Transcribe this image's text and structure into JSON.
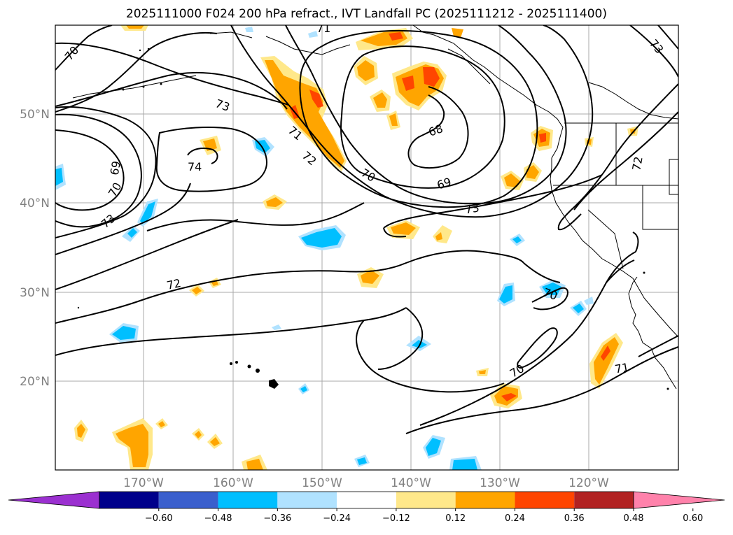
{
  "title": "2025111000 F024 200 hPa refract., IVT Landfall PC (2025111212 - 2025111400)",
  "latitude_labels": [
    "50°N",
    "40°N",
    "30°N",
    "20°N"
  ],
  "longitude_labels": [
    "170°W",
    "160°W",
    "150°W",
    "140°W",
    "130°W",
    "120°W"
  ],
  "contour_labels": [
    "70",
    "73",
    "69",
    "70",
    "73",
    "74",
    "71",
    "72",
    "70",
    "69",
    "68",
    "73",
    "72",
    "70",
    "70",
    "71",
    "71",
    "73",
    "72"
  ],
  "colorbar": {
    "ticks": [
      "−0.60",
      "−0.48",
      "−0.36",
      "−0.24",
      "−0.12",
      "0.12",
      "0.24",
      "0.36",
      "0.48",
      "0.60"
    ],
    "colors": [
      "#9b30d0",
      "#00008b",
      "#3a5fcd",
      "#00bfff",
      "#b0e2ff",
      "#ffffff",
      "#ffe88a",
      "#ffa500",
      "#ff4500",
      "#b22222",
      "#ff82ab"
    ]
  },
  "shading_colors": {
    "light_yellow": "#ffe88a",
    "orange": "#ffa500",
    "red_orange": "#ff4500",
    "light_blue": "#b0e2ff",
    "deep_sky_blue": "#00bfff"
  }
}
